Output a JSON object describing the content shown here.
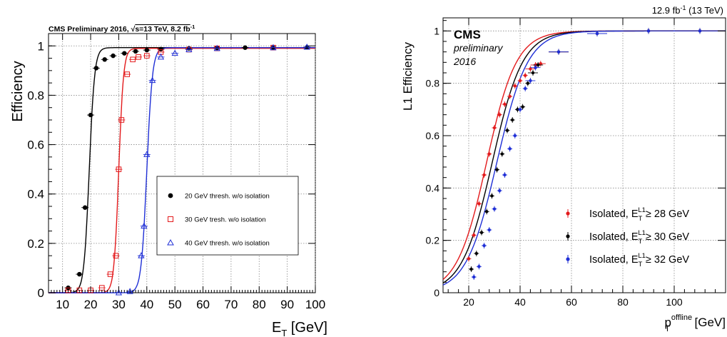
{
  "chart_data": [
    {
      "type": "scatter",
      "title": "CMS Preliminary 2016, √s=13 TeV, 8.2 fb⁻¹",
      "header": {
        "pre": "CMS Preliminary 2016, ",
        "sqrt": "√",
        "s_eq": "s=13 TeV, 8.2 fb",
        "sup": "-1"
      },
      "xlabel": {
        "main": "E",
        "sub": "T",
        "unit": " [GeV]"
      },
      "ylabel": "Efficiency",
      "xlim": [
        5,
        100
      ],
      "ylim": [
        0,
        1.05
      ],
      "xticks": [
        10,
        20,
        30,
        40,
        50,
        60,
        70,
        80,
        90,
        100
      ],
      "yticks": [
        0,
        0.2,
        0.4,
        0.6,
        0.8,
        1
      ],
      "ytick_labels": [
        "0",
        "0.2",
        "0.4",
        "0.6",
        "0.8",
        "1"
      ],
      "grid": true,
      "legend_position": "center-right",
      "series": [
        {
          "name": "20 GeV thresh. w/o isolation",
          "color": "#000000",
          "marker": "filled-circle",
          "x": [
            12,
            16,
            18,
            20,
            22,
            25,
            28,
            32,
            36,
            40,
            45,
            55,
            65,
            75,
            85,
            97
          ],
          "y": [
            0.02,
            0.075,
            0.345,
            0.72,
            0.91,
            0.945,
            0.96,
            0.97,
            0.978,
            0.983,
            0.987,
            0.99,
            0.992,
            0.993,
            0.993,
            0.994
          ],
          "fit": {
            "mid": 19.5,
            "width": 0.95,
            "plateau": 0.993
          }
        },
        {
          "name": "30 GeV tresh. w/o isolation",
          "color": "#e31a1c",
          "marker": "open-square",
          "x": [
            12,
            16,
            20,
            24,
            27,
            29,
            30,
            31,
            33,
            35,
            37,
            40,
            45,
            55,
            65,
            85
          ],
          "y": [
            0.01,
            0.01,
            0.01,
            0.02,
            0.075,
            0.15,
            0.5,
            0.7,
            0.885,
            0.945,
            0.955,
            0.96,
            0.975,
            0.985,
            0.99,
            0.993
          ],
          "fit": {
            "mid": 30.0,
            "width": 0.85,
            "plateau": 0.99
          }
        },
        {
          "name": "40 GeV thresh. w/o isolation",
          "color": "#1f2fd6",
          "marker": "open-triangle",
          "x": [
            30,
            34,
            38,
            39,
            40,
            42,
            45,
            50,
            55,
            65,
            85,
            97
          ],
          "y": [
            0.0,
            0.005,
            0.15,
            0.27,
            0.56,
            0.86,
            0.955,
            0.97,
            0.985,
            0.99,
            0.993,
            0.995
          ],
          "fit": {
            "mid": 40.0,
            "width": 1.0,
            "plateau": 0.993
          }
        }
      ]
    },
    {
      "type": "scatter",
      "lumi": {
        "pre": "12.9 fb",
        "sup": "-1",
        "post": " (13 TeV)"
      },
      "cms_label": "CMS",
      "cms_sub1": "preliminary",
      "cms_sub2": "2016",
      "xlabel": {
        "main": "p",
        "sub": "T",
        "sup": "offline",
        "unit": " [GeV]"
      },
      "ylabel": "L1 Efficiency",
      "xlim": [
        10,
        120
      ],
      "ylim": [
        0,
        1.05
      ],
      "xticks": [
        20,
        40,
        60,
        80,
        100
      ],
      "yticks": [
        0,
        0.2,
        0.4,
        0.6,
        0.8,
        1
      ],
      "ytick_labels": [
        "0",
        "0.2",
        "0.4",
        "0.6",
        "0.8",
        "1"
      ],
      "grid": true,
      "legend_position": "bottom-right",
      "series": [
        {
          "name": "Isolated, E_T^L1 ≥ 28 GeV",
          "leg": {
            "pre": "Isolated, E",
            "sub": "T",
            "sup": "L1",
            "post": "≥ 28 GeV"
          },
          "color": "#e31a1c",
          "x": [
            20,
            22,
            24,
            26,
            28,
            30,
            32,
            34,
            36,
            38,
            40,
            42,
            44,
            46,
            48,
            55,
            70,
            90,
            110
          ],
          "y": [
            0.13,
            0.22,
            0.34,
            0.45,
            0.53,
            0.63,
            0.68,
            0.72,
            0.75,
            0.79,
            0.81,
            0.83,
            0.855,
            0.87,
            0.875,
            0.92,
            0.99,
            1.0,
            1.0
          ],
          "fit": {
            "mid": 27.0,
            "width": 5.8
          }
        },
        {
          "name": "Isolated, E_T^L1 ≥ 30 GeV",
          "leg": {
            "pre": "Isolated, E",
            "sub": "T",
            "sup": "L1",
            "post": "≥ 30 GeV"
          },
          "color": "#000000",
          "x": [
            21,
            23,
            25,
            27,
            29,
            31,
            33,
            35,
            37,
            39,
            41,
            43,
            45,
            47,
            55,
            70,
            90,
            110
          ],
          "y": [
            0.09,
            0.15,
            0.23,
            0.31,
            0.37,
            0.47,
            0.53,
            0.62,
            0.66,
            0.7,
            0.71,
            0.8,
            0.84,
            0.87,
            0.92,
            0.99,
            1.0,
            1.0
          ],
          "fit": {
            "mid": 29.2,
            "width": 5.9
          }
        },
        {
          "name": "Isolated, E_T^L1 ≥ 32 GeV",
          "leg": {
            "pre": "Isolated, E",
            "sub": "T",
            "sup": "L1",
            "post": "≥ 32 GeV"
          },
          "color": "#1f2fd6",
          "x": [
            22,
            24,
            26,
            28,
            30,
            32,
            34,
            36,
            38,
            40,
            42,
            44,
            46,
            55,
            70,
            90,
            110
          ],
          "y": [
            0.06,
            0.1,
            0.18,
            0.24,
            0.32,
            0.39,
            0.45,
            0.55,
            0.6,
            0.7,
            0.78,
            0.81,
            0.86,
            0.92,
            0.99,
            1.0,
            1.0
          ],
          "fit": {
            "mid": 31.0,
            "width": 6.0
          }
        }
      ]
    }
  ]
}
